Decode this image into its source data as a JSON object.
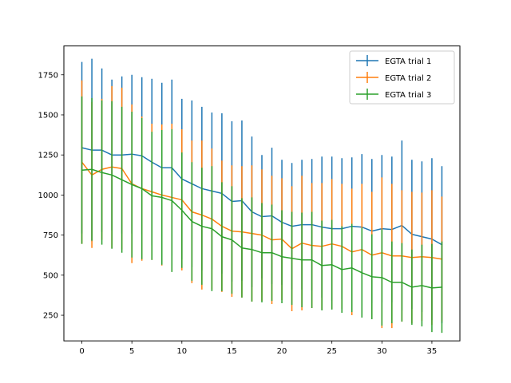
{
  "chart_data": {
    "type": "line",
    "title": "",
    "xlabel": "",
    "ylabel": "",
    "xlim": [
      -1.8,
      37.8
    ],
    "ylim": [
      90,
      1930
    ],
    "xticks": [
      0,
      5,
      10,
      15,
      20,
      25,
      30,
      35
    ],
    "yticks": [
      250,
      500,
      750,
      1000,
      1250,
      1500,
      1750
    ],
    "grid": false,
    "legend_position": "top-right",
    "x": [
      0,
      1,
      2,
      3,
      4,
      5,
      6,
      7,
      8,
      9,
      10,
      11,
      12,
      13,
      14,
      15,
      16,
      17,
      18,
      19,
      20,
      21,
      22,
      23,
      24,
      25,
      26,
      27,
      28,
      29,
      30,
      31,
      32,
      33,
      34,
      35,
      36
    ],
    "series": [
      {
        "name": "EGTA trial 1",
        "color": "#1f77b4",
        "values": [
          1295,
          1280,
          1280,
          1250,
          1250,
          1255,
          1245,
          1205,
          1170,
          1170,
          1100,
          1070,
          1040,
          1025,
          1010,
          960,
          965,
          895,
          865,
          870,
          830,
          805,
          815,
          815,
          800,
          790,
          790,
          805,
          800,
          775,
          790,
          785,
          810,
          755,
          740,
          725,
          690
        ],
        "errors": [
          535,
          570,
          510,
          470,
          490,
          495,
          490,
          520,
          530,
          550,
          500,
          520,
          510,
          490,
          500,
          500,
          500,
          470,
          385,
          425,
          390,
          395,
          405,
          410,
          440,
          450,
          440,
          430,
          455,
          450,
          460,
          455,
          530,
          465,
          470,
          505,
          490
        ]
      },
      {
        "name": "EGTA trial 2",
        "color": "#ff7f0e",
        "values": [
          1205,
          1125,
          1160,
          1175,
          1165,
          1070,
          1040,
          1020,
          1000,
          985,
          970,
          895,
          875,
          850,
          805,
          775,
          770,
          760,
          750,
          720,
          725,
          665,
          700,
          685,
          680,
          695,
          680,
          645,
          660,
          625,
          640,
          620,
          620,
          610,
          615,
          610,
          600
        ],
        "errors": [
          510,
          455,
          440,
          505,
          505,
          495,
          450,
          425,
          440,
          460,
          440,
          445,
          465,
          440,
          410,
          410,
          410,
          425,
          410,
          400,
          380,
          390,
          420,
          390,
          395,
          405,
          390,
          395,
          410,
          395,
          470,
          450,
          410,
          410,
          400,
          420,
          390
        ]
      },
      {
        "name": "EGTA trial 3",
        "color": "#2ca02c",
        "values": [
          1155,
          1160,
          1140,
          1125,
          1095,
          1065,
          1040,
          995,
          985,
          965,
          905,
          835,
          805,
          790,
          740,
          720,
          670,
          660,
          640,
          640,
          615,
          605,
          595,
          595,
          560,
          565,
          535,
          545,
          515,
          490,
          485,
          455,
          455,
          425,
          435,
          420,
          425
        ],
        "errors": [
          460,
          445,
          450,
          460,
          455,
          455,
          440,
          400,
          420,
          445,
          360,
          370,
          365,
          390,
          340,
          335,
          310,
          325,
          310,
          300,
          290,
          290,
          295,
          300,
          280,
          280,
          270,
          275,
          280,
          265,
          300,
          255,
          245,
          235,
          255,
          275,
          285
        ]
      }
    ]
  }
}
